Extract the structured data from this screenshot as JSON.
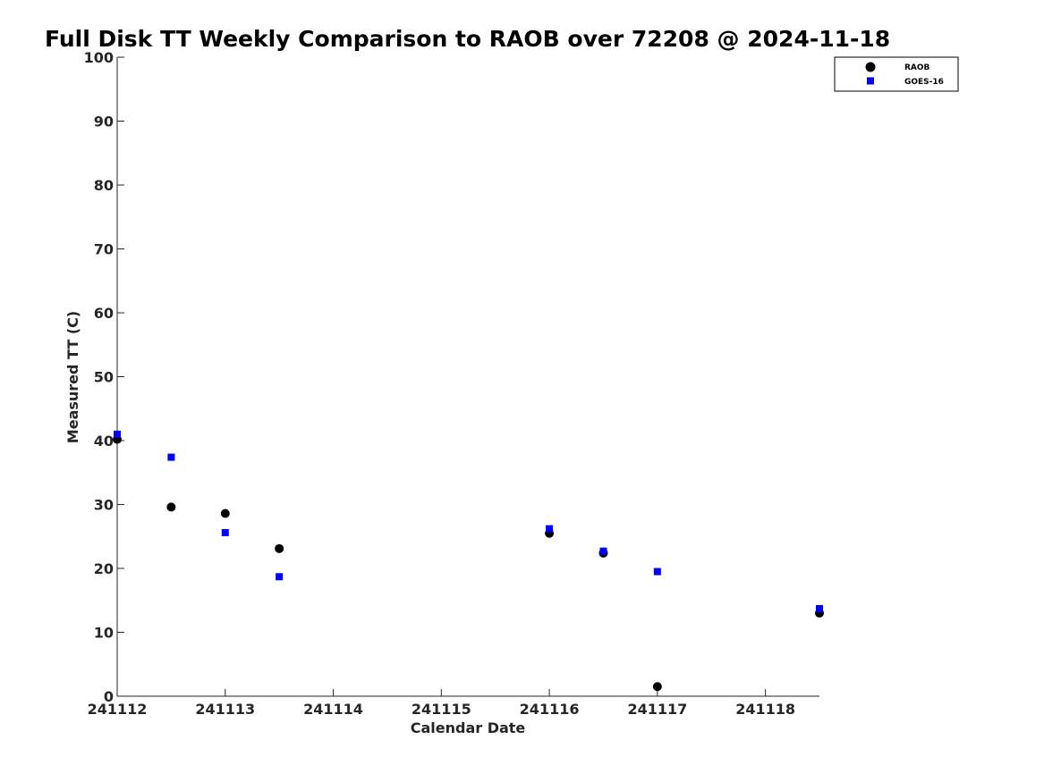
{
  "chart_data": {
    "type": "scatter",
    "title": "Full Disk TT Weekly Comparison to RAOB over 72208 @ 2024-11-18",
    "xlabel": "Calendar Date",
    "ylabel": "Measured TT (C)",
    "x_ticks": [
      "241112",
      "241113",
      "241114",
      "241115",
      "241116",
      "241117",
      "241118"
    ],
    "y_ticks": [
      "0",
      "10",
      "20",
      "30",
      "40",
      "50",
      "60",
      "70",
      "80",
      "90",
      "100"
    ],
    "xlim": [
      0,
      6.5
    ],
    "ylim": [
      0,
      100
    ],
    "grid": false,
    "legend_position": "top-right",
    "series": [
      {
        "name": "RAOB",
        "marker": "circle",
        "color": "#000000",
        "points": [
          {
            "x": "241112 00Z",
            "y": 40.2
          },
          {
            "x": "241112 12Z",
            "y": 29.6
          },
          {
            "x": "241113 00Z",
            "y": 28.6
          },
          {
            "x": "241113 12Z",
            "y": 23.1
          },
          {
            "x": "241116 00Z",
            "y": 25.5
          },
          {
            "x": "241116 12Z",
            "y": 22.4
          },
          {
            "x": "241117 00Z",
            "y": 1.5
          },
          {
            "x": "241118 12Z",
            "y": 13.0
          }
        ]
      },
      {
        "name": "GOES-16",
        "marker": "square",
        "color": "#0000ff",
        "points": [
          {
            "x": "241112 00Z",
            "y": 41.0
          },
          {
            "x": "241112 12Z",
            "y": 37.4
          },
          {
            "x": "241113 00Z",
            "y": 25.6
          },
          {
            "x": "241113 12Z",
            "y": 18.7
          },
          {
            "x": "241116 00Z",
            "y": 26.2
          },
          {
            "x": "241116 12Z",
            "y": 22.7
          },
          {
            "x": "241117 00Z",
            "y": 19.5
          },
          {
            "x": "241118 12Z",
            "y": 13.7
          }
        ]
      }
    ]
  }
}
